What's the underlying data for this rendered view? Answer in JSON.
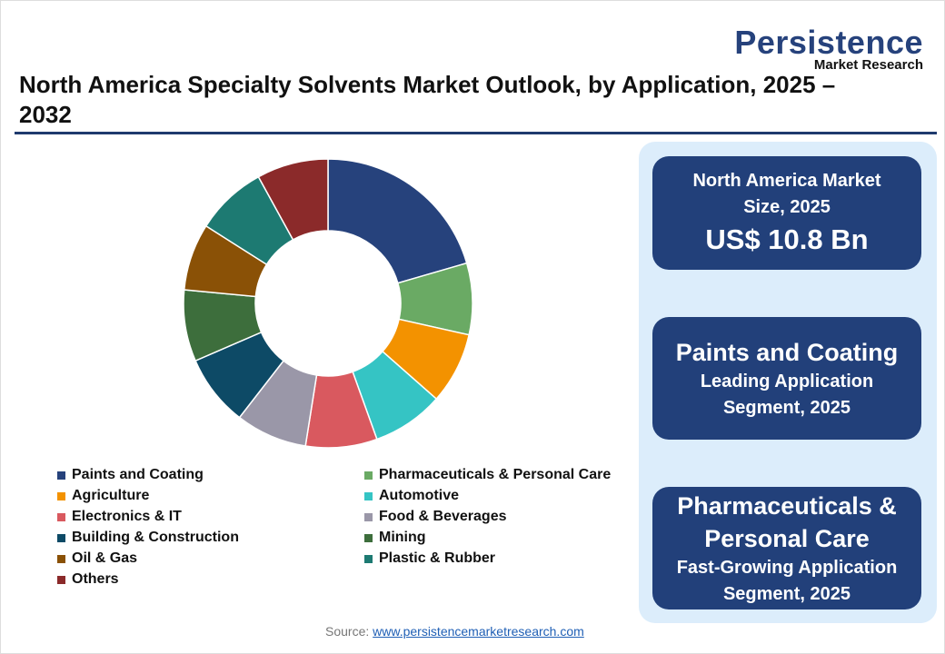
{
  "title": "North America Specialty Solvents Market Outlook, by Application, 2025 – 2032",
  "logo": {
    "name": "Persistence",
    "sub": "Market Research"
  },
  "cards": [
    {
      "line1": "North America Market",
      "line2": "Size, 2025",
      "value": "US$ 10.8 Bn"
    },
    {
      "headline": "Paints and Coating",
      "line1": "Leading Application",
      "line2": "Segment, 2025"
    },
    {
      "headline1": "Pharmaceuticals &",
      "headline2": "Personal Care",
      "line1": "Fast-Growing Application",
      "line2": "Segment, 2025"
    }
  ],
  "source": {
    "label": "Source:",
    "link": "www.persistencemarketresearch.com"
  },
  "chart_data": {
    "type": "pie",
    "donut": true,
    "title": "North America Specialty Solvents Market Outlook, by Application, 2025 – 2032",
    "legend_position": "bottom",
    "categories": [
      "Paints and Coating",
      "Pharmaceuticals & Personal Care",
      "Agriculture",
      "Automotive",
      "Electronics & IT",
      "Food & Beverages",
      "Building & Construction",
      "Mining",
      "Oil & Gas",
      "Plastic & Rubber",
      "Others"
    ],
    "values": [
      20.5,
      8,
      8,
      8,
      8,
      8,
      8,
      8,
      7.5,
      8,
      8
    ],
    "colors": [
      "#26427c",
      "#6aaa64",
      "#f39200",
      "#35c4c4",
      "#d9595f",
      "#9a97a8",
      "#0d4a66",
      "#3d6e3c",
      "#8a5106",
      "#1d7a72",
      "#8b2a2a"
    ]
  }
}
